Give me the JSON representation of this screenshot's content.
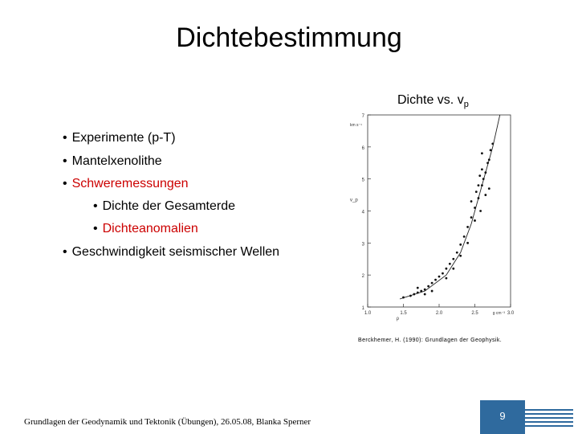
{
  "slide": {
    "title": "Dichtebestimmung",
    "chart_caption_main": "Dichte vs. v",
    "chart_caption_sub": "p",
    "bullets": [
      {
        "text": "Experimente (p-T)",
        "level": 1,
        "highlight": false
      },
      {
        "text": "Mantelxenolithe",
        "level": 1,
        "highlight": false
      },
      {
        "text": "Schweremessungen",
        "level": 1,
        "highlight": true
      },
      {
        "text": "Dichte der Gesamterde",
        "level": 2,
        "highlight": false
      },
      {
        "text": "Dichteanomalien",
        "level": 2,
        "highlight": true
      },
      {
        "text": "Geschwindigkeit seismischer Wellen",
        "level": 1,
        "highlight": false
      }
    ],
    "bullet_symbol": "•",
    "reference": "Berckhemer, H. (1990): Grundlagen der Geophysik.",
    "footer": "Grundlagen der Geodynamik und Tektonik (Übungen), 26.05.08, Blanka Sperner",
    "page_number": "9",
    "colors": {
      "highlight": "#cc0000",
      "page_box": "#2f6a9e",
      "stripes": "#2f6a9e"
    }
  },
  "chart_data": {
    "type": "scatter",
    "title": "",
    "xlabel": "ρ",
    "ylabel": "v_p",
    "x_unit": "g cm⁻³",
    "y_unit": "km s⁻¹",
    "x_ticks": [
      "1.0",
      "1.5",
      "2.0",
      "2.5",
      "3.0"
    ],
    "y_ticks": [
      "1",
      "2",
      "3",
      "4",
      "5",
      "6",
      "7"
    ],
    "xlim": [
      1.0,
      3.0
    ],
    "ylim": [
      1,
      7
    ],
    "points": [
      [
        1.5,
        1.3
      ],
      [
        1.6,
        1.35
      ],
      [
        1.65,
        1.4
      ],
      [
        1.7,
        1.45
      ],
      [
        1.75,
        1.5
      ],
      [
        1.8,
        1.55
      ],
      [
        1.85,
        1.65
      ],
      [
        1.9,
        1.75
      ],
      [
        1.95,
        1.85
      ],
      [
        2.0,
        1.95
      ],
      [
        2.05,
        2.05
      ],
      [
        2.1,
        2.2
      ],
      [
        2.15,
        2.35
      ],
      [
        2.2,
        2.5
      ],
      [
        2.25,
        2.7
      ],
      [
        2.3,
        2.95
      ],
      [
        2.35,
        3.2
      ],
      [
        2.4,
        3.5
      ],
      [
        2.45,
        3.8
      ],
      [
        2.5,
        4.1
      ],
      [
        2.55,
        4.4
      ],
      [
        2.6,
        4.8
      ],
      [
        2.65,
        5.2
      ],
      [
        2.7,
        5.6
      ],
      [
        2.75,
        6.1
      ],
      [
        2.55,
        4.8
      ],
      [
        2.6,
        5.3
      ],
      [
        2.65,
        4.5
      ],
      [
        2.58,
        4.0
      ],
      [
        2.62,
        5.0
      ],
      [
        2.7,
        4.7
      ],
      [
        2.5,
        3.7
      ],
      [
        2.45,
        4.3
      ],
      [
        2.4,
        3.0
      ],
      [
        2.3,
        2.6
      ],
      [
        2.2,
        2.2
      ],
      [
        1.7,
        1.6
      ],
      [
        1.9,
        1.5
      ],
      [
        2.1,
        1.9
      ],
      [
        1.8,
        1.4
      ],
      [
        2.6,
        5.8
      ],
      [
        2.68,
        5.5
      ],
      [
        2.72,
        5.9
      ],
      [
        2.52,
        4.6
      ],
      [
        2.57,
        5.1
      ]
    ],
    "fit_curve": [
      [
        1.45,
        1.25
      ],
      [
        1.8,
        1.5
      ],
      [
        2.1,
        2.0
      ],
      [
        2.3,
        2.7
      ],
      [
        2.45,
        3.6
      ],
      [
        2.6,
        4.8
      ],
      [
        2.75,
        6.0
      ],
      [
        2.85,
        7.0
      ]
    ]
  }
}
